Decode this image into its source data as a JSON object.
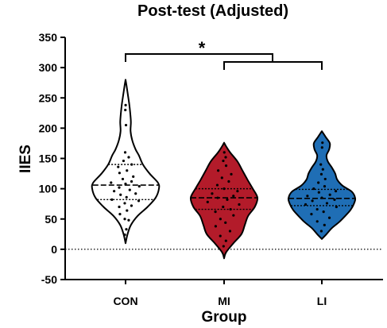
{
  "chart_data": {
    "type": "violin",
    "title": "Post-test (Adjusted)",
    "xlabel": "Group",
    "ylabel": "IIES",
    "ylim": [
      -50,
      350
    ],
    "yticks": [
      -50,
      0,
      50,
      100,
      150,
      200,
      250,
      300,
      350
    ],
    "reference_line": 0,
    "significance": {
      "label": "*",
      "comparison": "CON vs MI & LI"
    },
    "categories": [
      "CON",
      "MI",
      "LI"
    ],
    "series": [
      {
        "category": "CON",
        "fill": "#ffffff",
        "median": 106,
        "q1": 82,
        "q3": 140,
        "min": 10,
        "max": 280,
        "density": [
          [
            10,
            0.0
          ],
          [
            25,
            0.06
          ],
          [
            40,
            0.16
          ],
          [
            55,
            0.36
          ],
          [
            70,
            0.66
          ],
          [
            85,
            0.9
          ],
          [
            100,
            1.0
          ],
          [
            110,
            0.97
          ],
          [
            125,
            0.72
          ],
          [
            140,
            0.52
          ],
          [
            155,
            0.4
          ],
          [
            165,
            0.3
          ],
          [
            180,
            0.2
          ],
          [
            195,
            0.15
          ],
          [
            210,
            0.16
          ],
          [
            225,
            0.14
          ],
          [
            240,
            0.11
          ],
          [
            255,
            0.07
          ],
          [
            270,
            0.03
          ],
          [
            280,
            0.0
          ]
        ],
        "points": [
          [
            -0.1,
            24
          ],
          [
            0.1,
            33
          ],
          [
            -0.05,
            50
          ],
          [
            0.22,
            48
          ],
          [
            -0.25,
            58
          ],
          [
            0.05,
            64
          ],
          [
            -0.18,
            70
          ],
          [
            0.16,
            72
          ],
          [
            -0.02,
            76
          ],
          [
            0.3,
            80
          ],
          [
            -0.3,
            82
          ],
          [
            0.02,
            86
          ],
          [
            -0.1,
            90
          ],
          [
            0.2,
            92
          ],
          [
            -0.22,
            96
          ],
          [
            0.08,
            98
          ],
          [
            -0.12,
            102
          ],
          [
            0.26,
            104
          ],
          [
            0.0,
            108
          ],
          [
            -0.28,
            110
          ],
          [
            0.12,
            112
          ],
          [
            -0.06,
            116
          ],
          [
            0.18,
            120
          ],
          [
            -0.16,
            126
          ],
          [
            0.04,
            130
          ],
          [
            -0.24,
            136
          ],
          [
            0.22,
            140
          ],
          [
            -0.08,
            146
          ],
          [
            0.14,
            152
          ],
          [
            -0.02,
            160
          ],
          [
            0.05,
            205
          ],
          [
            -0.03,
            230
          ],
          [
            0.01,
            238
          ]
        ]
      },
      {
        "category": "MI",
        "fill": "#b31b2a",
        "median": 85,
        "q1": 66,
        "q3": 100,
        "min": -15,
        "max": 176,
        "density": [
          [
            -15,
            0.0
          ],
          [
            -5,
            0.06
          ],
          [
            10,
            0.28
          ],
          [
            25,
            0.52
          ],
          [
            40,
            0.62
          ],
          [
            55,
            0.72
          ],
          [
            70,
            0.92
          ],
          [
            85,
            1.0
          ],
          [
            100,
            0.86
          ],
          [
            115,
            0.7
          ],
          [
            130,
            0.55
          ],
          [
            145,
            0.4
          ],
          [
            160,
            0.18
          ],
          [
            170,
            0.06
          ],
          [
            176,
            0.0
          ]
        ],
        "points": [
          [
            -0.05,
            5
          ],
          [
            0.1,
            14
          ],
          [
            -0.15,
            22
          ],
          [
            0.2,
            30
          ],
          [
            -0.26,
            38
          ],
          [
            0.04,
            44
          ],
          [
            -0.1,
            50
          ],
          [
            0.24,
            56
          ],
          [
            -0.2,
            62
          ],
          [
            0.14,
            66
          ],
          [
            -0.02,
            70
          ],
          [
            0.3,
            74
          ],
          [
            -0.32,
            78
          ],
          [
            0.06,
            82
          ],
          [
            -0.12,
            85
          ],
          [
            0.18,
            88
          ],
          [
            -0.24,
            92
          ],
          [
            0.28,
            96
          ],
          [
            0.0,
            100
          ],
          [
            -0.16,
            106
          ],
          [
            0.12,
            112
          ],
          [
            -0.06,
            118
          ],
          [
            0.22,
            124
          ],
          [
            -0.2,
            130
          ],
          [
            0.08,
            138
          ],
          [
            -0.04,
            146
          ],
          [
            0.1,
            152
          ],
          [
            0.02,
            160
          ]
        ]
      },
      {
        "category": "LI",
        "fill": "#1f6eb5",
        "median": 84,
        "q1": 72,
        "q3": 99,
        "min": 17,
        "max": 195,
        "density": [
          [
            17,
            0.0
          ],
          [
            25,
            0.14
          ],
          [
            35,
            0.3
          ],
          [
            45,
            0.52
          ],
          [
            55,
            0.7
          ],
          [
            65,
            0.86
          ],
          [
            75,
            0.96
          ],
          [
            84,
            1.0
          ],
          [
            95,
            0.9
          ],
          [
            105,
            0.62
          ],
          [
            115,
            0.46
          ],
          [
            125,
            0.4
          ],
          [
            135,
            0.3
          ],
          [
            145,
            0.18
          ],
          [
            155,
            0.14
          ],
          [
            165,
            0.22
          ],
          [
            175,
            0.24
          ],
          [
            185,
            0.12
          ],
          [
            195,
            0.0
          ]
        ],
        "points": [
          [
            -0.04,
            30
          ],
          [
            0.12,
            40
          ],
          [
            -0.16,
            46
          ],
          [
            0.22,
            52
          ],
          [
            -0.26,
            58
          ],
          [
            0.04,
            62
          ],
          [
            -0.1,
            66
          ],
          [
            0.3,
            70
          ],
          [
            -0.32,
            74
          ],
          [
            0.1,
            76
          ],
          [
            -0.18,
            80
          ],
          [
            0.24,
            82
          ],
          [
            0.0,
            85
          ],
          [
            -0.28,
            88
          ],
          [
            0.16,
            90
          ],
          [
            -0.06,
            94
          ],
          [
            0.3,
            96
          ],
          [
            -0.2,
            100
          ],
          [
            0.08,
            104
          ],
          [
            -0.12,
            110
          ],
          [
            0.14,
            116
          ],
          [
            -0.02,
            124
          ],
          [
            0.06,
            132
          ],
          [
            -0.08,
            140
          ],
          [
            0.02,
            168
          ],
          [
            0.05,
            176
          ]
        ]
      }
    ]
  }
}
